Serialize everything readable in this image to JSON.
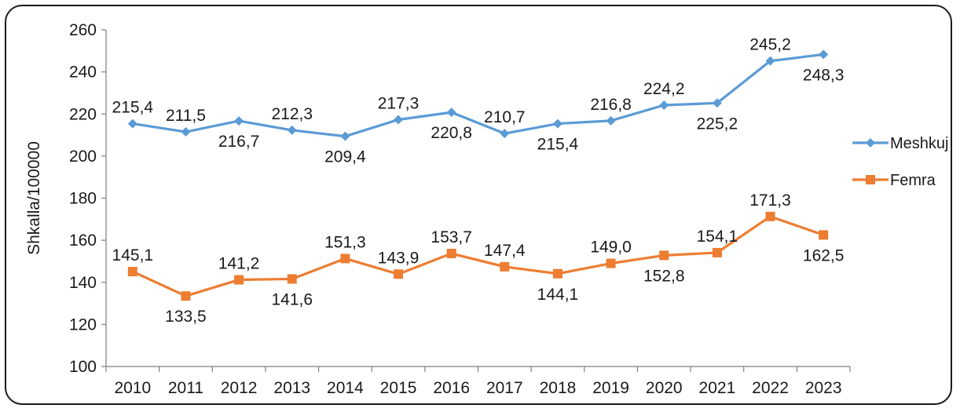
{
  "chart_data": {
    "type": "line",
    "ylabel": "Shkalla/100000",
    "xlabel": "",
    "ylim": [
      100,
      260
    ],
    "yticks": [
      100,
      120,
      140,
      160,
      180,
      200,
      220,
      240,
      260
    ],
    "categories": [
      "2010",
      "2011",
      "2012",
      "2013",
      "2014",
      "2015",
      "2016",
      "2017",
      "2018",
      "2019",
      "2020",
      "2021",
      "2022",
      "2023"
    ],
    "grid": false,
    "legend_position": "right",
    "series": [
      {
        "name": "Meshkuj",
        "color": "#5B9BD5",
        "marker": "diamond",
        "values": [
          215.4,
          211.5,
          216.7,
          212.3,
          209.4,
          217.3,
          220.8,
          210.7,
          215.4,
          216.8,
          224.2,
          225.2,
          245.2,
          248.3
        ],
        "labels": [
          "215,4",
          "211,5",
          "216,7",
          "212,3",
          "209,4",
          "217,3",
          "220,8",
          "210,7",
          "215,4",
          "216,8",
          "224,2",
          "225,2",
          "245,2",
          "248,3"
        ]
      },
      {
        "name": "Femra",
        "color": "#ED7D31",
        "marker": "square",
        "values": [
          145.1,
          133.5,
          141.2,
          141.6,
          151.3,
          143.9,
          153.7,
          147.4,
          144.1,
          149.0,
          152.8,
          154.1,
          171.3,
          162.5
        ],
        "labels": [
          "145,1",
          "133,5",
          "141,2",
          "141,6",
          "151,3",
          "143,9",
          "153,7",
          "147,4",
          "144,1",
          "149,0",
          "152,8",
          "154,1",
          "171,3",
          "162,5"
        ]
      }
    ]
  }
}
